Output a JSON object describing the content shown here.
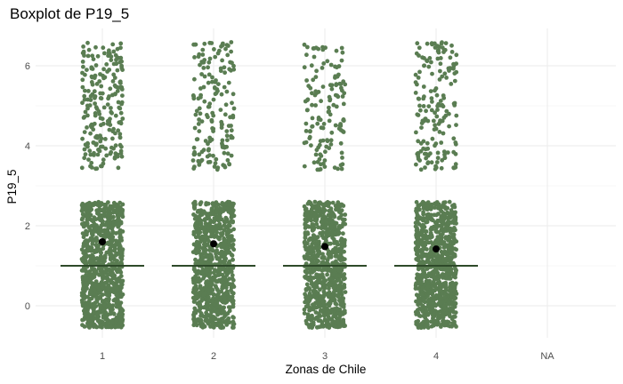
{
  "chart_data": {
    "type": "boxplot",
    "title": "Boxplot de P19_5",
    "xlabel": "Zonas de Chile",
    "ylabel": "P19_5",
    "categories": [
      "1",
      "2",
      "3",
      "4",
      "NA"
    ],
    "yticks": [
      0,
      2,
      4,
      6
    ],
    "ylim": [
      -0.75,
      6.9
    ],
    "grid": true,
    "legend": "none",
    "point_color": "#5a7d52",
    "box_line_color": "#2e4a2a",
    "mean_color": "#000000",
    "groups": [
      {
        "category": "1",
        "median": 1.0,
        "mean": 1.6,
        "q1": 1.0,
        "q3": 1.0,
        "jitter_bands": [
          {
            "from": -0.55,
            "to": 2.6,
            "count": 900
          },
          {
            "from": 3.4,
            "to": 6.6,
            "count": 220
          }
        ]
      },
      {
        "category": "2",
        "median": 1.0,
        "mean": 1.55,
        "q1": 1.0,
        "q3": 1.0,
        "jitter_bands": [
          {
            "from": -0.55,
            "to": 2.6,
            "count": 850
          },
          {
            "from": 3.4,
            "to": 6.6,
            "count": 170
          }
        ]
      },
      {
        "category": "3",
        "median": 1.0,
        "mean": 1.48,
        "q1": 1.0,
        "q3": 1.0,
        "jitter_bands": [
          {
            "from": -0.55,
            "to": 2.6,
            "count": 800
          },
          {
            "from": 3.4,
            "to": 6.55,
            "count": 140
          }
        ]
      },
      {
        "category": "4",
        "median": 1.0,
        "mean": 1.42,
        "q1": 1.0,
        "q3": 1.0,
        "jitter_bands": [
          {
            "from": -0.55,
            "to": 2.6,
            "count": 850
          },
          {
            "from": 3.4,
            "to": 6.6,
            "count": 170
          }
        ]
      },
      {
        "category": "NA",
        "median": null,
        "mean": null,
        "q1": null,
        "q3": null,
        "jitter_bands": []
      }
    ]
  }
}
